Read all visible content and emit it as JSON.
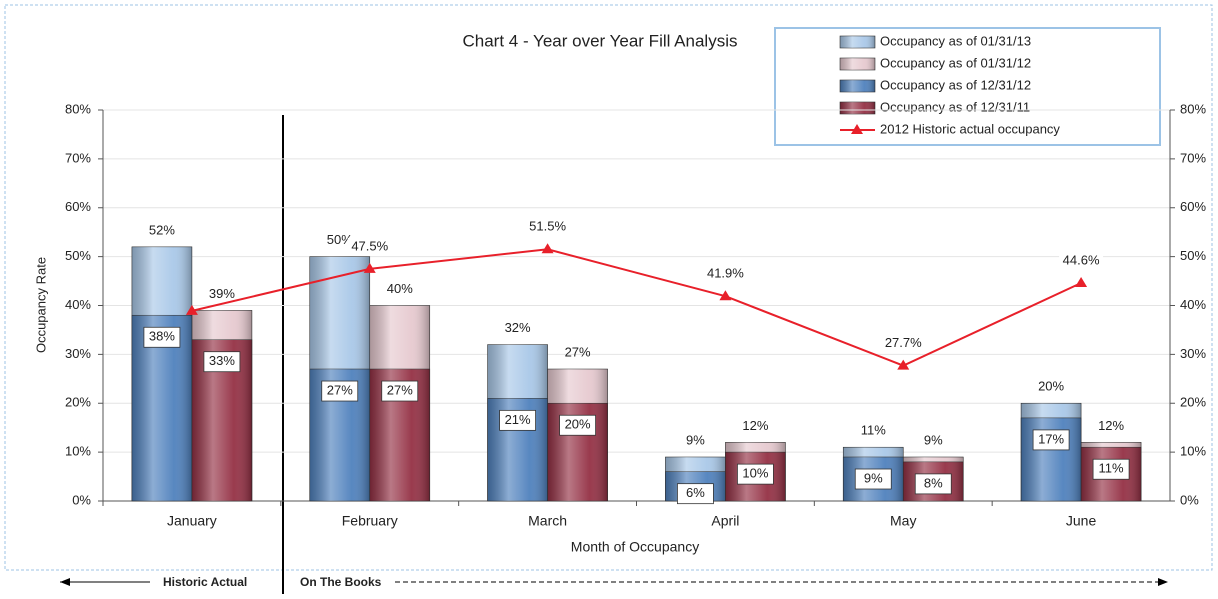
{
  "chart_data": {
    "type": "bar",
    "title": "Chart 4 - Year over Year Fill Analysis",
    "y_label": "Occupancy Rate",
    "x_label": "Month of Occupancy",
    "categories": [
      "January",
      "February",
      "March",
      "April",
      "May",
      "June"
    ],
    "series": [
      {
        "name": "Occupancy as of 01/31/13",
        "color": "#a9c8e8",
        "values": [
          52,
          50,
          32,
          9,
          11,
          20
        ],
        "value_labels": [
          "52%",
          "50%",
          "32%",
          "9%",
          "11%",
          "20%"
        ]
      },
      {
        "name": "Occupancy as of 01/31/12",
        "color": "#e6c9cf",
        "values": [
          39,
          40,
          27,
          12,
          9,
          12
        ],
        "value_labels": [
          "39%",
          "40%",
          "27%",
          "12%",
          "9%",
          "12%"
        ]
      },
      {
        "name": "Occupancy as of 12/31/12",
        "color": "#4f81bd",
        "values": [
          38,
          27,
          21,
          6,
          9,
          17
        ],
        "value_labels": [
          "38%",
          "27%",
          "21%",
          "6%",
          "9%",
          "17%"
        ]
      },
      {
        "name": "Occupancy as of 12/31/11",
        "color": "#943044",
        "values": [
          33,
          27,
          20,
          10,
          8,
          11
        ],
        "value_labels": [
          "33%",
          "27%",
          "20%",
          "10%",
          "8%",
          "11%"
        ]
      },
      {
        "name": "2012 Historic actual occupancy",
        "type": "line",
        "axis": "y2",
        "color": "#e8202a",
        "values": [
          38.9,
          47.5,
          51.5,
          41.9,
          27.7,
          44.6
        ],
        "value_labels": [
          null,
          "47.5%",
          "51.5%",
          "41.9%",
          "27.7%",
          "44.6%"
        ]
      }
    ],
    "ylim": [
      0,
      80
    ],
    "yticks": [
      {
        "value": 0,
        "label": "0%"
      },
      {
        "value": 10,
        "label": "10%"
      },
      {
        "value": 20,
        "label": "20%"
      },
      {
        "value": 30,
        "label": "30%"
      },
      {
        "value": 40,
        "label": "40%"
      },
      {
        "value": 50,
        "label": "50%"
      },
      {
        "value": 60,
        "label": "60%"
      },
      {
        "value": 70,
        "label": "70%"
      },
      {
        "value": 80,
        "label": "80%"
      }
    ],
    "y2lim": [
      0,
      80
    ],
    "y2ticks": [
      {
        "value": 0,
        "label": "0%"
      },
      {
        "value": 10,
        "label": "10%"
      },
      {
        "value": 20,
        "label": "20%"
      },
      {
        "value": 30,
        "label": "30%"
      },
      {
        "value": 40,
        "label": "40%"
      },
      {
        "value": 50,
        "label": "50%"
      },
      {
        "value": 60,
        "label": "60%"
      },
      {
        "value": 70,
        "label": "70%"
      },
      {
        "value": 80,
        "label": "80%"
      }
    ],
    "grid": true,
    "legend": "top-right",
    "annotations": [
      "Historic Actual",
      "On The Books"
    ]
  }
}
